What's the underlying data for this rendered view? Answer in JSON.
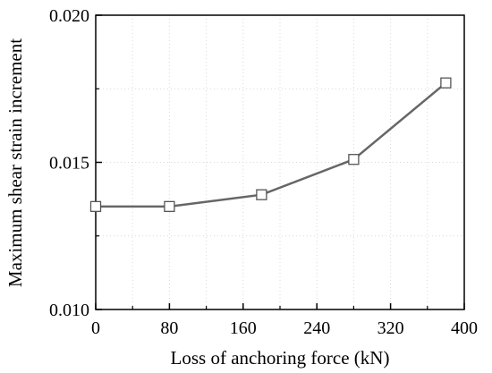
{
  "chart_data": {
    "type": "line",
    "xlabel": "Loss of anchoring force (kN)",
    "ylabel": "Maximum shear strain increment",
    "xlim": [
      0,
      400
    ],
    "ylim": [
      0.01,
      0.02
    ],
    "x_ticks": [
      0,
      80,
      160,
      240,
      320,
      400
    ],
    "x_tick_labels": [
      "0",
      "80",
      "160",
      "240",
      "320",
      "400"
    ],
    "y_ticks": [
      0.01,
      0.015,
      0.02
    ],
    "y_tick_labels": [
      "0.010",
      "0.015",
      "0.020"
    ],
    "grid": true,
    "series": [
      {
        "x": [
          0,
          80,
          180,
          280,
          380
        ],
        "values": [
          0.0135,
          0.0135,
          0.0139,
          0.0151,
          0.0177
        ],
        "marker": "square",
        "color": "#666666"
      }
    ]
  }
}
